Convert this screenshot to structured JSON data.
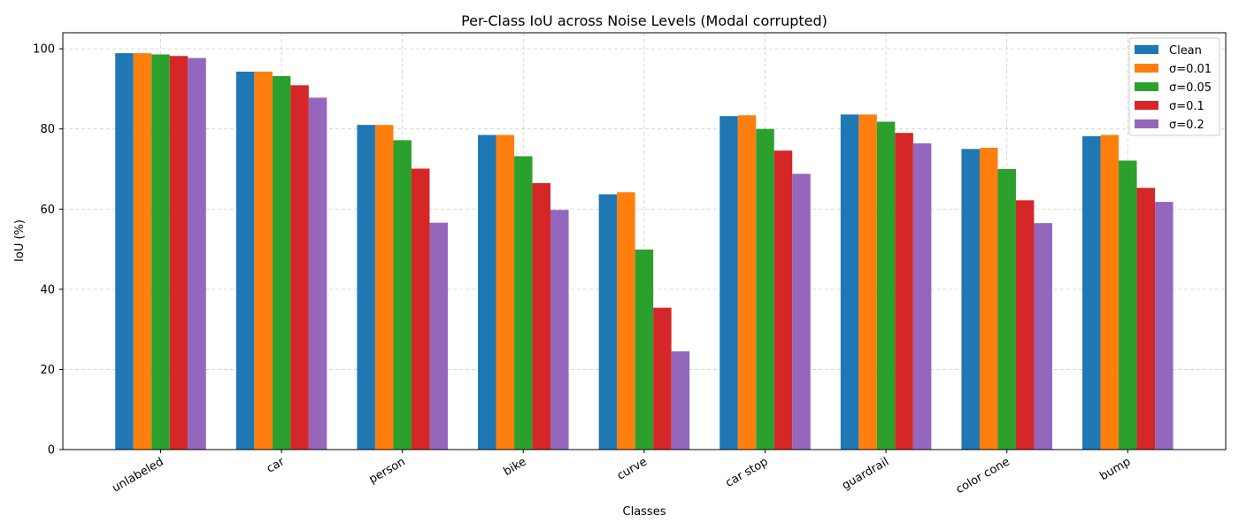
{
  "chart_data": {
    "type": "bar",
    "title": "Per-Class IoU across Noise Levels (Modal corrupted)",
    "xlabel": "Classes",
    "ylabel": "IoU (%)",
    "ylim": [
      0,
      104
    ],
    "yticks": [
      "0",
      "20",
      "40",
      "60",
      "80",
      "100"
    ],
    "grid": true,
    "legend_position": "top-right",
    "categories": [
      "unlabeled",
      "car",
      "person",
      "bike",
      "curve",
      "car stop",
      "guardrail",
      "color cone",
      "bump"
    ],
    "series": [
      {
        "name": "Clean",
        "color": "#1f77b4",
        "values": [
          98.9,
          94.3,
          81.0,
          78.5,
          63.7,
          83.2,
          83.6,
          75.0,
          78.2
        ]
      },
      {
        "name": "σ=0.01",
        "color": "#ff7f0e",
        "values": [
          98.9,
          94.3,
          81.0,
          78.5,
          64.2,
          83.4,
          83.6,
          75.3,
          78.5
        ]
      },
      {
        "name": "σ=0.05",
        "color": "#2ca02c",
        "values": [
          98.6,
          93.2,
          77.2,
          73.2,
          49.9,
          80.0,
          81.8,
          70.0,
          72.1
        ]
      },
      {
        "name": "σ=0.1",
        "color": "#d62728",
        "values": [
          98.2,
          90.9,
          70.1,
          66.5,
          35.4,
          74.6,
          79.0,
          62.2,
          65.3
        ]
      },
      {
        "name": "σ=0.2",
        "color": "#9467bd",
        "values": [
          97.7,
          87.8,
          56.6,
          59.8,
          24.5,
          68.8,
          76.4,
          56.5,
          61.8
        ]
      }
    ]
  }
}
